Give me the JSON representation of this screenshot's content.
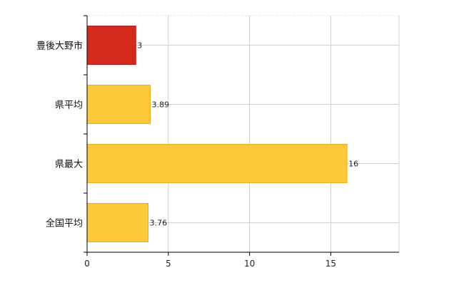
{
  "chart_data": {
    "type": "bar",
    "orientation": "horizontal",
    "categories": [
      "豊後大野市",
      "県平均",
      "県最大",
      "全国平均"
    ],
    "values": [
      3,
      3.89,
      16,
      3.76
    ],
    "data_labels": [
      "3",
      "3.89",
      "16",
      "3.76"
    ],
    "xlim": [
      0,
      19.2
    ],
    "xticks": [
      0,
      5,
      10,
      15
    ],
    "grid": true,
    "legend": "none",
    "colors": {
      "highlight": "#d42a1e",
      "highlight_edge": "#b01e14",
      "default": "#fdc83a",
      "default_edge": "#e6ae22",
      "grid": "#d0d0d0",
      "axis": "#000000"
    },
    "highlight_index": 0
  }
}
